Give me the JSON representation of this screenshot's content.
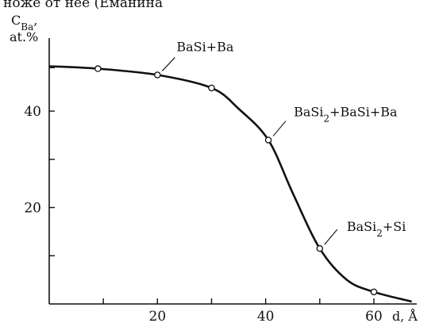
{
  "top_caption": "ноже от нее (Еманина",
  "chart_data": {
    "type": "line",
    "title": "",
    "xlabel": "d, Å",
    "ylabel_main": "C",
    "ylabel_sub": "Ba",
    "ylabel_suffix": ",",
    "ylabel_unit": "at.%",
    "xlim": [
      0,
      67
    ],
    "ylim": [
      0,
      52
    ],
    "x_ticks_major": [
      20,
      40,
      60
    ],
    "x_ticks_minor": [
      10,
      30,
      50
    ],
    "y_ticks_major": [
      20,
      40
    ],
    "y_ticks_minor": [
      10,
      30,
      49
    ],
    "points": [
      {
        "x": 9,
        "y": 48.8
      },
      {
        "x": 20,
        "y": 47.5
      },
      {
        "x": 30,
        "y": 44.8
      },
      {
        "x": 40.5,
        "y": 34
      },
      {
        "x": 50,
        "y": 11.5
      },
      {
        "x": 60,
        "y": 2.5
      }
    ],
    "curve": [
      {
        "x": 0,
        "y": 49.3
      },
      {
        "x": 9,
        "y": 48.8
      },
      {
        "x": 20,
        "y": 47.5
      },
      {
        "x": 30,
        "y": 44.8
      },
      {
        "x": 35,
        "y": 40.5
      },
      {
        "x": 40.5,
        "y": 34
      },
      {
        "x": 45,
        "y": 23
      },
      {
        "x": 50,
        "y": 11.5
      },
      {
        "x": 55,
        "y": 5
      },
      {
        "x": 60,
        "y": 2.5
      },
      {
        "x": 67,
        "y": 0.5
      }
    ],
    "annotations": [
      {
        "text_main": "BaSi+Ba",
        "text_sub": "",
        "text_rest": "",
        "x": 20,
        "y": 47.5
      },
      {
        "text_main": "BaSi",
        "text_sub": "2",
        "text_rest": "+BaSi+Ba",
        "x": 40.5,
        "y": 34
      },
      {
        "text_main": "BaSi",
        "text_sub": "2",
        "text_rest": "+Si",
        "x": 50,
        "y": 11.5
      }
    ],
    "grid": false,
    "legend": "none"
  }
}
